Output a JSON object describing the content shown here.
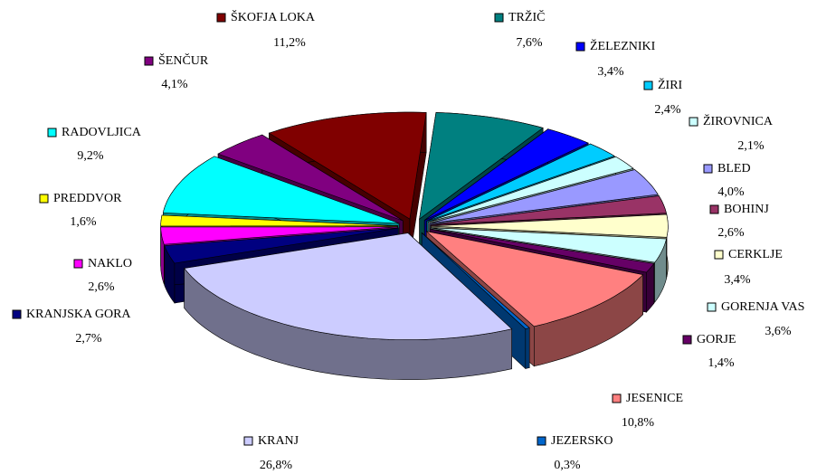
{
  "chart_data": {
    "type": "pie",
    "categories": [
      "TRŽIČ",
      "ŽELEZNIKI",
      "ŽIRI",
      "ŽIROVNICA",
      "BLED",
      "BOHINJ",
      "CERKLJE",
      "GORENJA VAS",
      "GORJE",
      "JESENICE",
      "JEZERSKO",
      "KRANJ",
      "KRANJSKA GORA",
      "NAKLO",
      "PREDDVOR",
      "RADOVLJICA",
      "ŠENČUR",
      "ŠKOFJA LOKA"
    ],
    "values": [
      7.6,
      3.4,
      2.4,
      2.1,
      4.0,
      2.6,
      3.4,
      3.6,
      1.4,
      10.8,
      0.3,
      26.8,
      2.7,
      2.6,
      1.6,
      9.2,
      4.1,
      11.2
    ],
    "value_labels": [
      "7,6%",
      "3,4%",
      "2,4%",
      "2,1%",
      "4,0%",
      "2,6%",
      "3,4%",
      "3,6%",
      "1,4%",
      "10,8%",
      "0,3%",
      "26,8%",
      "2,7%",
      "2,6%",
      "1,6%",
      "9,2%",
      "4,1%",
      "11,2%"
    ],
    "colors": [
      "#008080",
      "#0000ff",
      "#00ccff",
      "#ccffff",
      "#9999ff",
      "#993366",
      "#ffffcc",
      "#ccffff",
      "#660066",
      "#ff8080",
      "#0066cc",
      "#ccccff",
      "#000080",
      "#ff00ff",
      "#ffff00",
      "#00ffff",
      "#800080",
      "#800000"
    ]
  }
}
